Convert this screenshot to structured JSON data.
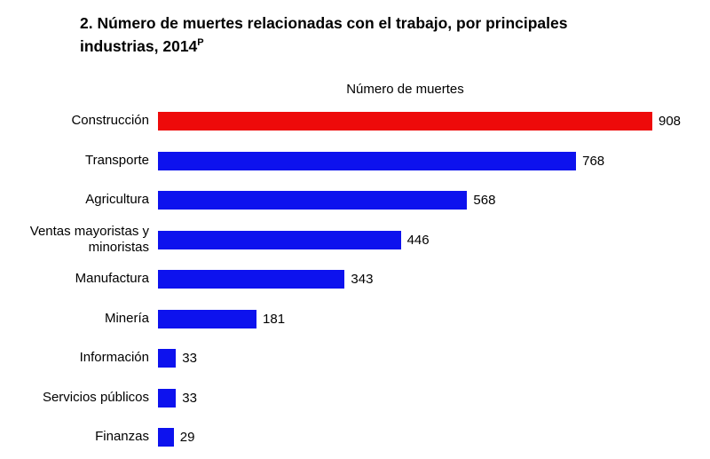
{
  "title": {
    "line1": "2. Número de muertes relacionadas con el trabajo, por principales",
    "line2": "industrias, 2014",
    "superscript": "P"
  },
  "chart_data": {
    "type": "bar",
    "orientation": "horizontal",
    "title": "2. Número de muertes relacionadas con el trabajo, por principales industrias, 2014P",
    "axis_title": "Número de muertes",
    "xlabel": "Número de muertes",
    "ylabel": "",
    "categories": [
      "Construcción",
      "Transporte",
      "Agricultura",
      "Ventas mayoristas y minoristas",
      "Manufactura",
      "Minería",
      "Información",
      "Servicios públicos",
      "Finanzas"
    ],
    "values": [
      908,
      768,
      568,
      446,
      343,
      181,
      33,
      33,
      29
    ],
    "bar_colors": [
      "#ee0a0a",
      "#0d12ee",
      "#0d12ee",
      "#0d12ee",
      "#0d12ee",
      "#0d12ee",
      "#0d12ee",
      "#0d12ee",
      "#0d12ee"
    ],
    "xlim": [
      0,
      908
    ],
    "grid": false,
    "legend": false,
    "data_labels": true
  },
  "colors": {
    "highlight_red": "#ee0a0a",
    "bar_blue": "#0d12ee",
    "text": "#000000",
    "background": "#ffffff"
  }
}
